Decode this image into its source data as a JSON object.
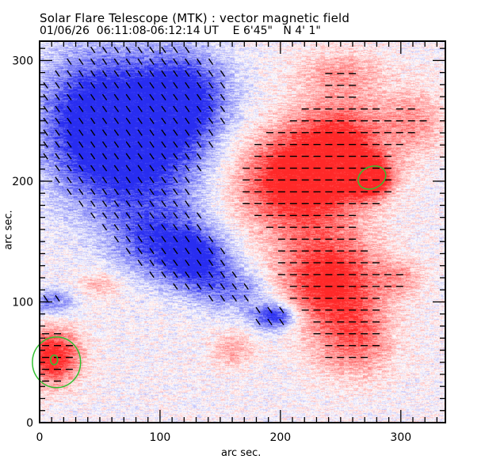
{
  "chart_data": {
    "type": "heatmap",
    "title": "Solar Flare Telescope (MTK) : vector magnetic field",
    "subtitle": {
      "date": "01/06/26",
      "time_range": "06:11:08-06:12:14 UT",
      "east": "E 6'45\"",
      "north": "N 4' 1\""
    },
    "xlabel": "arc sec.",
    "ylabel": "arc sec.",
    "xlim": [
      0,
      337
    ],
    "ylim": [
      0,
      316
    ],
    "x_ticks": [
      0,
      100,
      200,
      300
    ],
    "y_ticks": [
      0,
      100,
      200,
      300
    ],
    "x_tick_labels": [
      "0",
      "100",
      "200",
      "300"
    ],
    "y_tick_labels": [
      "0",
      "100",
      "200",
      "300"
    ],
    "minor_tick_step": 10,
    "colors": {
      "negative_polarity": "#2a2ef0",
      "positive_polarity": "#ff2a2a",
      "contour": "#30c030",
      "vector": "#000000"
    },
    "negative_regions": [
      {
        "x": 85,
        "y": 230,
        "rx": 55,
        "ry": 70,
        "strength": 1.0
      },
      {
        "x": 40,
        "y": 250,
        "rx": 45,
        "ry": 60,
        "strength": 0.85
      },
      {
        "x": 120,
        "y": 270,
        "rx": 40,
        "ry": 40,
        "strength": 0.8
      },
      {
        "x": 130,
        "y": 135,
        "rx": 30,
        "ry": 25,
        "strength": 0.85
      },
      {
        "x": 100,
        "y": 150,
        "rx": 40,
        "ry": 30,
        "strength": 0.6
      },
      {
        "x": 195,
        "y": 88,
        "rx": 20,
        "ry": 12,
        "strength": 0.9
      },
      {
        "x": 160,
        "y": 110,
        "rx": 35,
        "ry": 20,
        "strength": 0.5
      },
      {
        "x": 10,
        "y": 100,
        "rx": 20,
        "ry": 12,
        "strength": 0.5
      }
    ],
    "positive_regions": [
      {
        "x": 210,
        "y": 200,
        "rx": 50,
        "ry": 45,
        "strength": 1.0
      },
      {
        "x": 250,
        "y": 225,
        "rx": 40,
        "ry": 45,
        "strength": 0.9
      },
      {
        "x": 240,
        "y": 120,
        "rx": 45,
        "ry": 40,
        "strength": 0.95
      },
      {
        "x": 275,
        "y": 203,
        "rx": 18,
        "ry": 16,
        "strength": 1.0
      },
      {
        "x": 260,
        "y": 70,
        "rx": 35,
        "ry": 35,
        "strength": 0.6
      },
      {
        "x": 10,
        "y": 55,
        "rx": 25,
        "ry": 25,
        "strength": 1.0
      },
      {
        "x": 310,
        "y": 250,
        "rx": 30,
        "ry": 30,
        "strength": 0.4
      },
      {
        "x": 250,
        "y": 290,
        "rx": 40,
        "ry": 20,
        "strength": 0.35
      },
      {
        "x": 160,
        "y": 60,
        "rx": 20,
        "ry": 15,
        "strength": 0.35
      },
      {
        "x": 50,
        "y": 115,
        "rx": 20,
        "ry": 12,
        "strength": 0.3
      },
      {
        "x": 300,
        "y": 120,
        "rx": 20,
        "ry": 15,
        "strength": 0.35
      }
    ],
    "contours": [
      {
        "x": 276,
        "y": 203,
        "rx": 12,
        "ry": 9,
        "angle": -25
      },
      {
        "x": 14,
        "y": 50,
        "rx": 20,
        "ry": 21,
        "angle": 0
      },
      {
        "x": 12,
        "y": 52,
        "rx": 3,
        "ry": 4,
        "angle": 0
      }
    ]
  }
}
